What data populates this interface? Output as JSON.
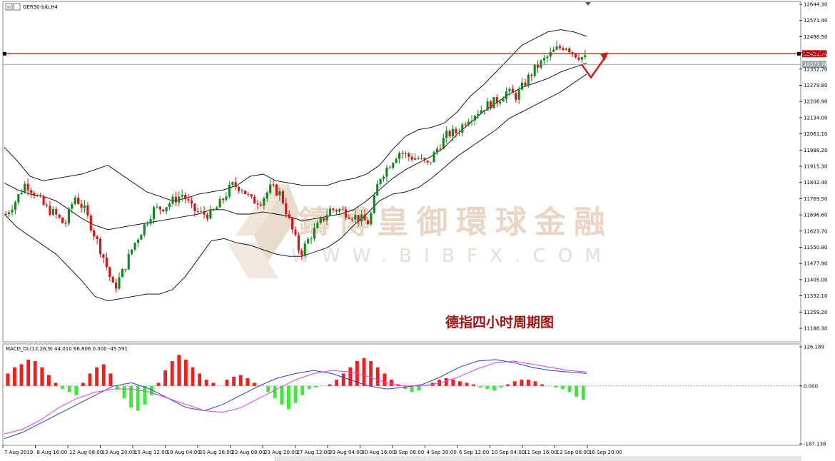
{
  "window": {
    "symbol_label": "GER30-bib,H4",
    "macd_label": "MACD_DL(12,26,9) 44.010 66.806 0.000 -45.591",
    "caption": "德指四小时周期图",
    "watermark_cn": "鑄博皇御環球金融",
    "watermark_en": "WWW.BIBFX.COM"
  },
  "colors": {
    "bull": "#0a8a1a",
    "bear": "#e01010",
    "band": "#000000",
    "hist_pos": "#ff1a1a",
    "hist_neg": "#33ee33",
    "macd": "#2a3dd6",
    "signal": "#e040e0",
    "resistance": "#e01010",
    "arrow": "#e01010"
  },
  "chart_data": [
    {
      "type": "candlestick",
      "ylim": [
        11186.3,
        12644.3
      ],
      "ticks": [
        "12644.30",
        "12571.40",
        "12498.50",
        "12425.60",
        "12352.70",
        "12279.80",
        "12206.90",
        "12134.00",
        "12061.10",
        "11988.20",
        "11915.30",
        "11842.40",
        "11769.50",
        "11696.60",
        "11623.70",
        "11550.80",
        "11477.90",
        "11405.00",
        "11332.10",
        "11259.20",
        "11186.30"
      ],
      "x_labels": [
        "7 Aug 2019",
        "8 Aug 16:00",
        "12 Aug 08:00",
        "13 Aug 20:00",
        "15 Aug 12:00",
        "19 Aug 04:00",
        "20 Aug 16:00",
        "22 Aug 08:00",
        "23 Aug 20:00",
        "27 Aug 12:00",
        "29 Aug 04:00",
        "30 Aug 16:00",
        "3 Sep 08:00",
        "4 Sep 20:00",
        "6 Sep 12:00",
        "10 Sep 04:00",
        "11 Sep 16:00",
        "13 Sep 08:00",
        "16 Sep 20:00"
      ],
      "price_marks": [
        {
          "value": 12421.74,
          "label": "12421.74",
          "kind": "resistance"
        },
        {
          "value": 12373.78,
          "label": "12373.78",
          "kind": "current"
        }
      ],
      "anchors": [
        11700,
        11760,
        11840,
        11790,
        11730,
        11700,
        11650,
        11780,
        11720,
        11610,
        11500,
        11360,
        11450,
        11560,
        11640,
        11720,
        11730,
        11760,
        11790,
        11720,
        11700,
        11700,
        11760,
        11830,
        11820,
        11760,
        11760,
        11820,
        11790,
        11650,
        11520,
        11600,
        11660,
        11720,
        11720,
        11700,
        11680,
        11660,
        11860,
        11920,
        11980,
        11960,
        11950,
        11920,
        12000,
        12060,
        12070,
        12130,
        12160,
        12190,
        12210,
        12250,
        12230,
        12300,
        12360,
        12400,
        12440,
        12460,
        12420,
        12400
      ],
      "bollinger": {
        "upper": [
          12000,
          11940,
          11870,
          11850,
          11860,
          11870,
          11880,
          11900,
          11920,
          11880,
          11840,
          11800,
          11780,
          11760,
          11770,
          11790,
          11800,
          11810,
          11830,
          11870,
          11880,
          11850,
          11840,
          11830,
          11830,
          11830,
          11850,
          11860,
          11880,
          11920,
          11990,
          12050,
          12080,
          12090,
          12110,
          12160,
          12230,
          12280,
          12340,
          12400,
          12460,
          12490,
          12520,
          12530,
          12520,
          12500
        ],
        "middle": [
          11840,
          11810,
          11790,
          11780,
          11760,
          11720,
          11680,
          11650,
          11630,
          11640,
          11650,
          11660,
          11670,
          11680,
          11690,
          11700,
          11720,
          11720,
          11700,
          11700,
          11710,
          11700,
          11690,
          11670,
          11680,
          11690,
          11700,
          11720,
          11760,
          11810,
          11860,
          11900,
          11930,
          11960,
          12000,
          12060,
          12110,
          12160,
          12200,
          12240,
          12270,
          12290,
          12310,
          12340,
          12360,
          12380
        ],
        "lower": [
          11700,
          11640,
          11600,
          11560,
          11520,
          11460,
          11400,
          11330,
          11310,
          11320,
          11330,
          11340,
          11340,
          11360,
          11420,
          11500,
          11580,
          11590,
          11570,
          11560,
          11540,
          11520,
          11510,
          11510,
          11530,
          11550,
          11590,
          11650,
          11700,
          11760,
          11790,
          11800,
          11820,
          11860,
          11910,
          11960,
          12000,
          12040,
          12080,
          12130,
          12160,
          12190,
          12220,
          12250,
          12290,
          12330
        ]
      },
      "forecast": {
        "from": 12373,
        "low": 12315,
        "to": 12421.74
      }
    },
    {
      "type": "macd",
      "ylim": [
        -187.138,
        126.189
      ],
      "ticks": [
        "126.189",
        "0.000",
        "-187.138"
      ],
      "histogram": [
        40,
        60,
        70,
        85,
        80,
        60,
        35,
        10,
        -10,
        -20,
        -30,
        10,
        40,
        60,
        70,
        40,
        -10,
        -40,
        -70,
        -80,
        -60,
        -30,
        10,
        50,
        80,
        100,
        85,
        60,
        40,
        20,
        10,
        0,
        20,
        30,
        35,
        25,
        10,
        0,
        -20,
        -40,
        -60,
        -75,
        -55,
        -30,
        -10,
        -5,
        0,
        5,
        20,
        40,
        60,
        80,
        90,
        80,
        60,
        40,
        20,
        5,
        -10,
        -20,
        -15,
        0,
        10,
        20,
        25,
        20,
        15,
        10,
        5,
        -5,
        -10,
        -15,
        -5,
        5,
        15,
        20,
        20,
        15,
        5,
        0,
        -5,
        -10,
        -20,
        -35,
        -45
      ],
      "macd": [
        -170,
        -150,
        -120,
        -90,
        -60,
        -30,
        0,
        10,
        -10,
        -40,
        -70,
        -80,
        -60,
        -30,
        0,
        25,
        40,
        50,
        40,
        20,
        0,
        -10,
        -5,
        5,
        30,
        60,
        80,
        85,
        75,
        60,
        50,
        45,
        40
      ],
      "signal": [
        -155,
        -140,
        -110,
        -70,
        -40,
        -20,
        -10,
        -10,
        -20,
        -40,
        -60,
        -80,
        -85,
        -70,
        -40,
        -10,
        20,
        40,
        50,
        45,
        30,
        10,
        0,
        0,
        10,
        30,
        55,
        75,
        80,
        70,
        60,
        50,
        45
      ]
    }
  ]
}
